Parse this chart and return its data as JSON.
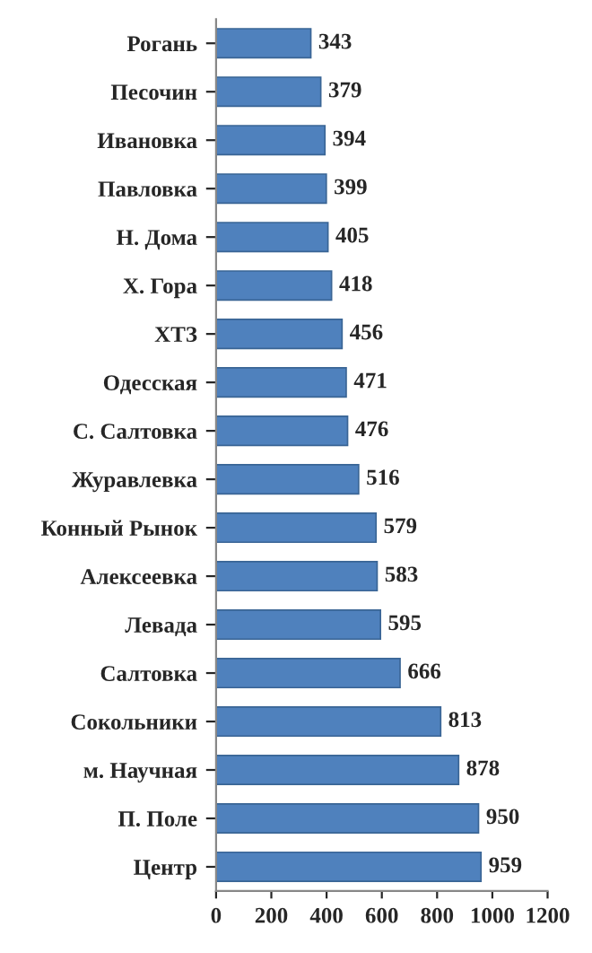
{
  "chart_data": {
    "type": "bar",
    "orientation": "horizontal",
    "categories": [
      "Рогань",
      "Песочин",
      "Ивановка",
      "Павловка",
      "Н. Дома",
      "Х. Гора",
      "ХТЗ",
      "Одесская",
      "С. Салтовка",
      "Журавлевка",
      "Конный Рынок",
      "Алексеевка",
      "Левада",
      "Салтовка",
      "Сокольники",
      "м. Научная",
      "П. Поле",
      "Центр"
    ],
    "values": [
      343,
      379,
      394,
      399,
      405,
      418,
      456,
      471,
      476,
      516,
      579,
      583,
      595,
      666,
      813,
      878,
      950,
      959
    ],
    "color": "#4f81bd",
    "xlim": [
      0,
      1200
    ],
    "xticks": [
      0,
      200,
      400,
      600,
      800,
      1000,
      1200
    ],
    "data_labels": true,
    "grid": false,
    "legend": false
  }
}
